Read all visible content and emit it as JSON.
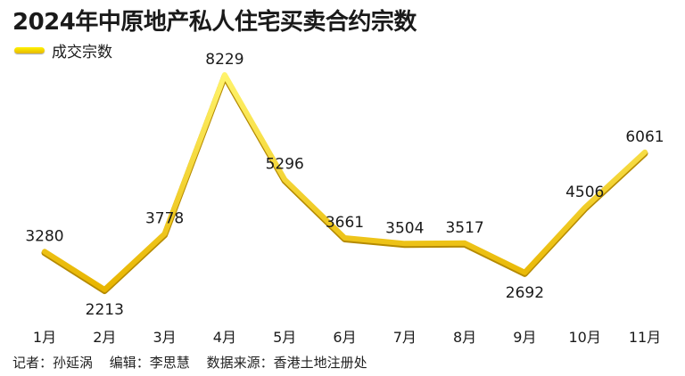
{
  "title": "2024年中原地产私人住宅买卖合约宗数",
  "legend": {
    "label": "成交宗数",
    "color": "#f5c800"
  },
  "footer": {
    "reporter": "记者：孙延涡",
    "editor": "编辑：李思慧",
    "source": "数据来源：香港土地注册处"
  },
  "chart_data": {
    "type": "line",
    "title": "2024年中原地产私人住宅买卖合约宗数",
    "xlabel": "",
    "ylabel": "",
    "categories": [
      "1月",
      "2月",
      "3月",
      "4月",
      "5月",
      "6月",
      "7月",
      "8月",
      "9月",
      "10月",
      "11月"
    ],
    "series": [
      {
        "name": "成交宗数",
        "values": [
          3280,
          2213,
          3778,
          8229,
          5296,
          3661,
          3504,
          3517,
          2692,
          4506,
          6061
        ]
      }
    ],
    "grid": false,
    "legend_position": "top-left",
    "line_color": "#f5c800"
  }
}
